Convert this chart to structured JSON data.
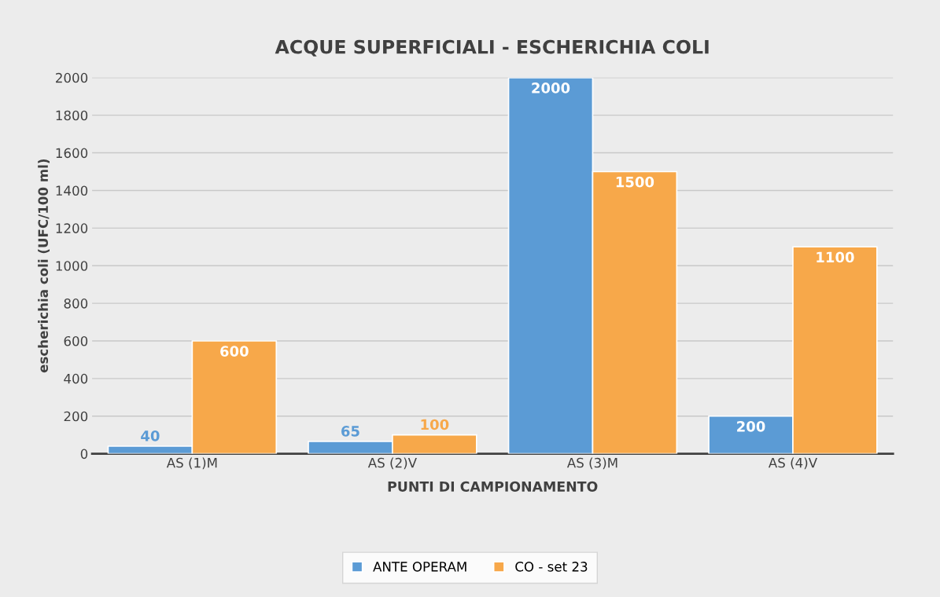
{
  "chart_data": {
    "type": "bar",
    "title": "ACQUE SUPERFICIALI - ESCHERICHIA COLI",
    "xlabel": "PUNTI DI CAMPIONAMENTO",
    "ylabel": "escherichia coli (UFC/100 ml)",
    "categories": [
      "AS (1)M",
      "AS (2)V",
      "AS (3)M",
      "AS (4)V"
    ],
    "series": [
      {
        "name": "ANTE OPERAM",
        "color": "#5b9bd5",
        "values": [
          40,
          65,
          2000,
          200
        ]
      },
      {
        "name": "CO - set 23",
        "color": "#f7a84a",
        "values": [
          600,
          100,
          1500,
          1100
        ]
      }
    ],
    "ylim": [
      0,
      2000
    ],
    "yticks": [
      0,
      200,
      400,
      600,
      800,
      1000,
      1200,
      1400,
      1600,
      1800,
      2000
    ],
    "grid": "y",
    "legend": "bottom",
    "data_labels": true
  }
}
